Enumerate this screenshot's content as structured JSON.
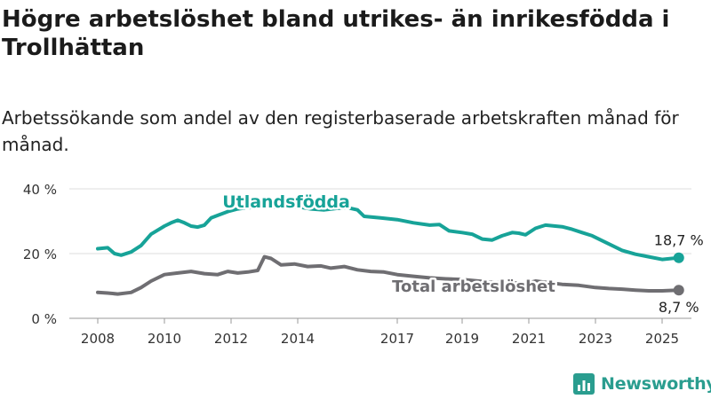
{
  "title": "Högre arbetslöshet bland utrikes- än inrikesfödda i Trollhättan",
  "subtitle": "Arbetssökande som andel av den registerbaserade arbetskraften månad för månad.",
  "brand": "Newsworthy",
  "colors": {
    "utrikes": "#17a398",
    "total": "#6f6e72",
    "grid": "#dcdcdc",
    "text": "#333333"
  },
  "chart_data": {
    "type": "line",
    "xlabel": "",
    "ylabel": "",
    "ylim": [
      0,
      40
    ],
    "yticks": [
      0,
      20,
      40
    ],
    "ytick_labels": [
      "0 %",
      "20 %",
      "40 %"
    ],
    "xticks": [
      2008,
      2010,
      2012,
      2014,
      2017,
      2019,
      2021,
      2023,
      2025
    ],
    "xtick_labels": [
      "2008",
      "2010",
      "2012",
      "2014",
      "2017",
      "2019",
      "2021",
      "2023",
      "2025"
    ],
    "grid": true,
    "series": [
      {
        "name": "Utlandsfödda",
        "end_label": "18,7 %",
        "points": [
          [
            2008.0,
            21.5
          ],
          [
            2008.3,
            21.8
          ],
          [
            2008.5,
            20.0
          ],
          [
            2008.7,
            19.5
          ],
          [
            2009.0,
            20.5
          ],
          [
            2009.3,
            22.5
          ],
          [
            2009.6,
            26.0
          ],
          [
            2010.0,
            28.5
          ],
          [
            2010.2,
            29.5
          ],
          [
            2010.4,
            30.3
          ],
          [
            2010.6,
            29.5
          ],
          [
            2010.8,
            28.5
          ],
          [
            2011.0,
            28.2
          ],
          [
            2011.2,
            28.8
          ],
          [
            2011.4,
            31.0
          ],
          [
            2011.6,
            31.8
          ],
          [
            2011.9,
            33.0
          ],
          [
            2012.2,
            33.8
          ],
          [
            2012.5,
            34.2
          ],
          [
            2013.0,
            34.5
          ],
          [
            2013.5,
            34.3
          ],
          [
            2014.0,
            34.5
          ],
          [
            2014.4,
            33.8
          ],
          [
            2014.8,
            33.5
          ],
          [
            2015.2,
            34.0
          ],
          [
            2015.5,
            34.2
          ],
          [
            2015.8,
            33.5
          ],
          [
            2016.0,
            31.5
          ],
          [
            2016.5,
            31.0
          ],
          [
            2017.0,
            30.5
          ],
          [
            2017.5,
            29.5
          ],
          [
            2018.0,
            28.8
          ],
          [
            2018.3,
            29.0
          ],
          [
            2018.6,
            27.0
          ],
          [
            2019.0,
            26.5
          ],
          [
            2019.3,
            26.0
          ],
          [
            2019.6,
            24.5
          ],
          [
            2019.9,
            24.2
          ],
          [
            2020.2,
            25.5
          ],
          [
            2020.5,
            26.5
          ],
          [
            2020.7,
            26.3
          ],
          [
            2020.9,
            25.8
          ],
          [
            2021.2,
            27.8
          ],
          [
            2021.5,
            28.8
          ],
          [
            2021.8,
            28.5
          ],
          [
            2022.0,
            28.3
          ],
          [
            2022.3,
            27.5
          ],
          [
            2022.6,
            26.5
          ],
          [
            2022.9,
            25.5
          ],
          [
            2023.2,
            24.0
          ],
          [
            2023.5,
            22.5
          ],
          [
            2023.8,
            21.0
          ],
          [
            2024.2,
            19.8
          ],
          [
            2024.6,
            19.0
          ],
          [
            2025.0,
            18.2
          ],
          [
            2025.5,
            18.7
          ]
        ]
      },
      {
        "name": "Total arbetslöshet",
        "end_label": "8,7 %",
        "points": [
          [
            2008.0,
            8.0
          ],
          [
            2008.3,
            7.8
          ],
          [
            2008.6,
            7.5
          ],
          [
            2009.0,
            8.0
          ],
          [
            2009.3,
            9.5
          ],
          [
            2009.6,
            11.5
          ],
          [
            2010.0,
            13.5
          ],
          [
            2010.4,
            14.0
          ],
          [
            2010.8,
            14.5
          ],
          [
            2011.2,
            13.8
          ],
          [
            2011.6,
            13.5
          ],
          [
            2011.9,
            14.5
          ],
          [
            2012.2,
            14.0
          ],
          [
            2012.5,
            14.3
          ],
          [
            2012.8,
            14.8
          ],
          [
            2013.0,
            19.0
          ],
          [
            2013.2,
            18.5
          ],
          [
            2013.5,
            16.5
          ],
          [
            2013.9,
            16.8
          ],
          [
            2014.3,
            16.0
          ],
          [
            2014.7,
            16.2
          ],
          [
            2015.0,
            15.5
          ],
          [
            2015.4,
            16.0
          ],
          [
            2015.8,
            15.0
          ],
          [
            2016.2,
            14.5
          ],
          [
            2016.6,
            14.3
          ],
          [
            2017.0,
            13.5
          ],
          [
            2017.5,
            13.0
          ],
          [
            2018.0,
            12.5
          ],
          [
            2018.5,
            12.2
          ],
          [
            2019.0,
            12.0
          ],
          [
            2019.5,
            11.5
          ],
          [
            2020.0,
            11.0
          ],
          [
            2020.5,
            11.0
          ],
          [
            2020.9,
            10.7
          ],
          [
            2021.2,
            11.5
          ],
          [
            2021.6,
            11.0
          ],
          [
            2022.0,
            10.5
          ],
          [
            2022.5,
            10.2
          ],
          [
            2023.0,
            9.5
          ],
          [
            2023.4,
            9.2
          ],
          [
            2023.8,
            9.0
          ],
          [
            2024.2,
            8.7
          ],
          [
            2024.6,
            8.5
          ],
          [
            2025.0,
            8.5
          ],
          [
            2025.5,
            8.7
          ]
        ]
      }
    ]
  }
}
